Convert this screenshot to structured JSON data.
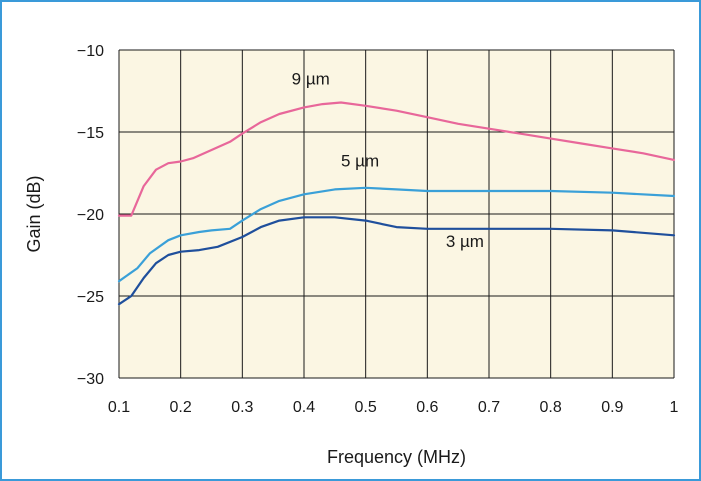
{
  "chart_data": {
    "type": "line",
    "title": "",
    "xlabel": "Frequency (MHz)",
    "ylabel": "Gain (dB)",
    "xlim": [
      0.1,
      1.0
    ],
    "ylim": [
      -30,
      -10
    ],
    "x_ticks": [
      0.1,
      0.2,
      0.3,
      0.4,
      0.5,
      0.6,
      0.7,
      0.8,
      0.9,
      1.0
    ],
    "x_tick_labels": [
      "0.1",
      "0.2",
      "0.3",
      "0.4",
      "0.5",
      "0.6",
      "0.7",
      "0.8",
      "0.9",
      "1"
    ],
    "y_ticks": [
      -10,
      -15,
      -20,
      -25,
      -30
    ],
    "y_tick_labels": [
      "−10",
      "−15",
      "−20",
      "−25",
      "−30"
    ],
    "grid": true,
    "plot_background": "#fbf6e3",
    "grid_color": "#1a1a1a",
    "series": [
      {
        "name": "9 µm",
        "color": "#e8679a",
        "x": [
          0.1,
          0.12,
          0.14,
          0.16,
          0.18,
          0.2,
          0.22,
          0.25,
          0.28,
          0.3,
          0.33,
          0.36,
          0.4,
          0.43,
          0.46,
          0.5,
          0.55,
          0.6,
          0.65,
          0.7,
          0.75,
          0.8,
          0.85,
          0.9,
          0.95,
          1.0
        ],
        "y": [
          -20.1,
          -20.1,
          -18.3,
          -17.3,
          -16.9,
          -16.8,
          -16.6,
          -16.1,
          -15.6,
          -15.1,
          -14.4,
          -13.9,
          -13.5,
          -13.3,
          -13.2,
          -13.4,
          -13.7,
          -14.1,
          -14.5,
          -14.8,
          -15.1,
          -15.4,
          -15.7,
          -16.0,
          -16.3,
          -16.7
        ]
      },
      {
        "name": "5 µm",
        "color": "#3aa0d8",
        "x": [
          0.1,
          0.13,
          0.15,
          0.18,
          0.2,
          0.23,
          0.25,
          0.28,
          0.3,
          0.33,
          0.36,
          0.4,
          0.45,
          0.5,
          0.55,
          0.6,
          0.7,
          0.8,
          0.9,
          1.0
        ],
        "y": [
          -24.1,
          -23.3,
          -22.4,
          -21.6,
          -21.3,
          -21.1,
          -21.0,
          -20.9,
          -20.4,
          -19.7,
          -19.2,
          -18.8,
          -18.5,
          -18.4,
          -18.5,
          -18.6,
          -18.6,
          -18.6,
          -18.7,
          -18.9
        ]
      },
      {
        "name": "3 µm",
        "color": "#1f4f9c",
        "x": [
          0.1,
          0.12,
          0.14,
          0.16,
          0.18,
          0.2,
          0.23,
          0.26,
          0.3,
          0.33,
          0.36,
          0.4,
          0.45,
          0.5,
          0.55,
          0.6,
          0.7,
          0.8,
          0.9,
          1.0
        ],
        "y": [
          -25.5,
          -25.0,
          -23.9,
          -23.0,
          -22.5,
          -22.3,
          -22.2,
          -22.0,
          -21.4,
          -20.8,
          -20.4,
          -20.2,
          -20.2,
          -20.4,
          -20.8,
          -20.9,
          -20.9,
          -20.9,
          -21.0,
          -21.3
        ]
      }
    ],
    "annotations": [
      {
        "text": "9 µm",
        "x": 0.38,
        "y": -12.1
      },
      {
        "text": "5 µm",
        "x": 0.46,
        "y": -17.1
      },
      {
        "text": "3 µm",
        "x": 0.63,
        "y": -22.0
      }
    ]
  }
}
